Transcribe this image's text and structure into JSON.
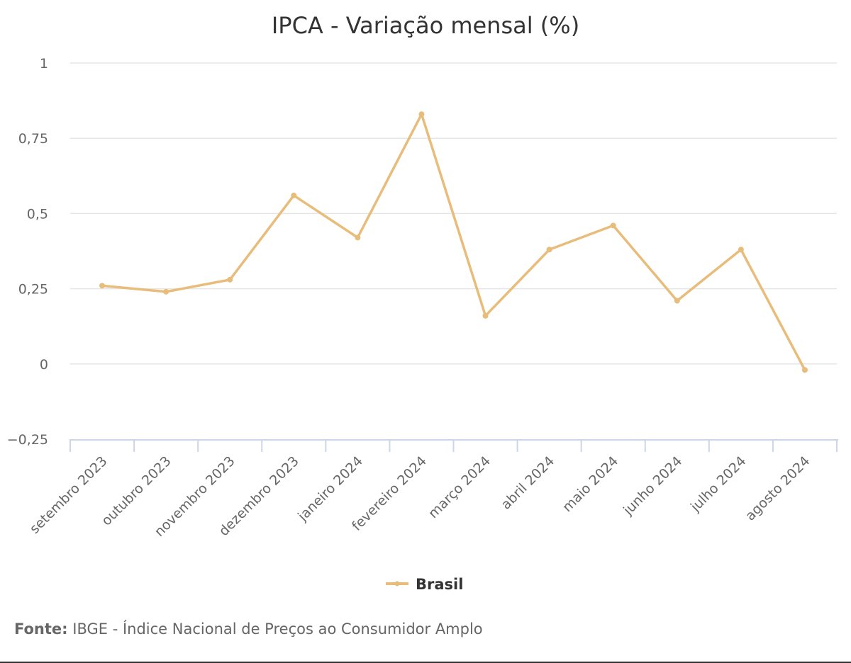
{
  "chart_data": {
    "type": "line",
    "title": "IPCA - Variação mensal (%)",
    "categories": [
      "setembro 2023",
      "outubro 2023",
      "novembro 2023",
      "dezembro 2023",
      "janeiro 2024",
      "fevereiro 2024",
      "março 2024",
      "abril 2024",
      "maio 2024",
      "junho 2024",
      "julho 2024",
      "agosto 2024"
    ],
    "series": [
      {
        "name": "Brasil",
        "color": "#E8BC7A",
        "values": [
          0.26,
          0.24,
          0.28,
          0.56,
          0.42,
          0.83,
          0.16,
          0.38,
          0.46,
          0.21,
          0.38,
          -0.02
        ]
      }
    ],
    "ylim": [
      -0.25,
      1
    ],
    "yticks": [
      1,
      0.75,
      0.5,
      0.25,
      0,
      -0.25
    ],
    "ytick_labels": [
      "1",
      "0,75",
      "0,5",
      "0,25",
      "0",
      "−0,25"
    ],
    "xlabel": "",
    "ylabel": "",
    "grid": true,
    "legend_position": "bottom-center"
  },
  "source": {
    "label": "Fonte:",
    "text": "IBGE - Índice Nacional de Preços ao Consumidor Amplo"
  }
}
